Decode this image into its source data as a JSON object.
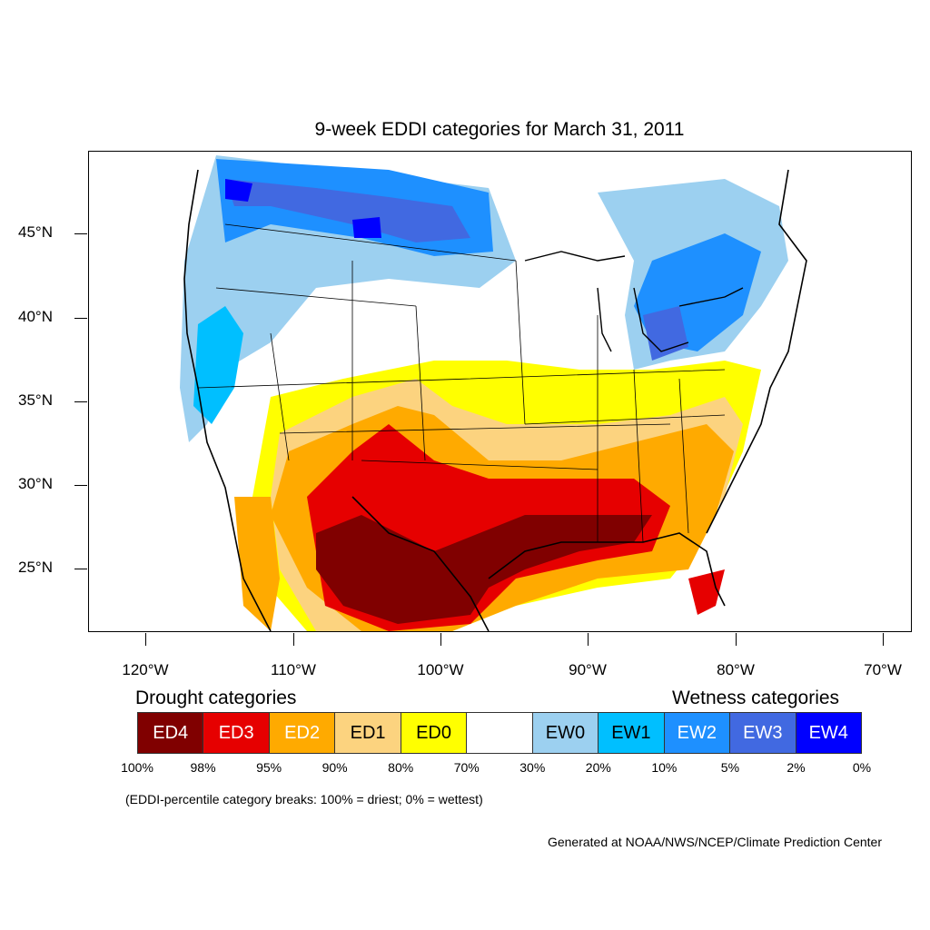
{
  "title": "9-week EDDI categories for March 31, 2011",
  "lat_labels": [
    "45°N",
    "40°N",
    "35°N",
    "30°N",
    "25°N"
  ],
  "lon_labels": [
    "120°W",
    "110°W",
    "100°W",
    "90°W",
    "80°W",
    "70°W"
  ],
  "legend": {
    "drought_heading": "Drought categories",
    "wetness_heading": "Wetness categories",
    "categories": [
      {
        "label": "ED4",
        "color": "#800000",
        "text_color": "#ffffff"
      },
      {
        "label": "ED3",
        "color": "#e60000",
        "text_color": "#ffffff"
      },
      {
        "label": "ED2",
        "color": "#ffaa00",
        "text_color": "#ffffff"
      },
      {
        "label": "ED1",
        "color": "#fcd37f",
        "text_color": "#000000"
      },
      {
        "label": "ED0",
        "color": "#ffff00",
        "text_color": "#000000"
      },
      {
        "label": "",
        "color": "#ffffff",
        "text_color": "#000000"
      },
      {
        "label": "EW0",
        "color": "#9cd0f0",
        "text_color": "#000000"
      },
      {
        "label": "EW1",
        "color": "#00bfff",
        "text_color": "#000000"
      },
      {
        "label": "EW2",
        "color": "#1e90ff",
        "text_color": "#ffffff"
      },
      {
        "label": "EW3",
        "color": "#4169e1",
        "text_color": "#ffffff"
      },
      {
        "label": "EW4",
        "color": "#0000ff",
        "text_color": "#ffffff"
      }
    ],
    "percentiles": [
      "100%",
      "98%",
      "95%",
      "90%",
      "80%",
      "70%",
      "30%",
      "20%",
      "10%",
      "5%",
      "2%",
      "0%"
    ]
  },
  "note": "(EDDI-percentile category breaks: 100% = driest; 0% = wettest)",
  "credit": "Generated at NOAA/NWS/NCEP/Climate Prediction Center"
}
